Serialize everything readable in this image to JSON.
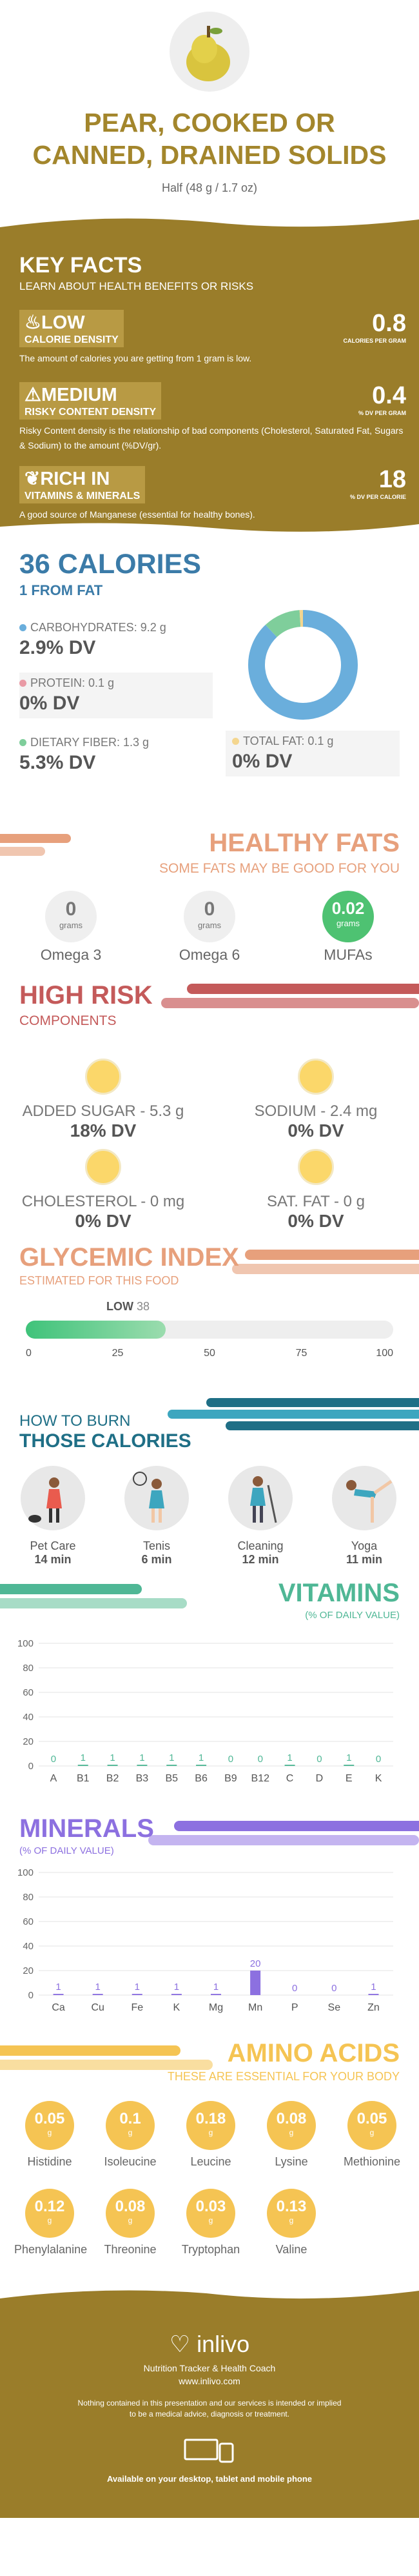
{
  "header": {
    "title_line1": "PEAR, COOKED OR",
    "title_line2": "CANNED, DRAINED SOLIDS",
    "serving": "Half (48 g / 1.7 oz)",
    "icon": "pear-icon"
  },
  "key_facts": {
    "title": "KEY FACTS",
    "subtitle": "LEARN ABOUT HEALTH BENEFITS OR RISKS",
    "facts": [
      {
        "level": "LOW",
        "name": "CALORIE DENSITY",
        "value": "0.8",
        "unit": "CALORIES PER GRAM",
        "desc": "The amount of calories you are getting from 1 gram is low.",
        "icon": "flame-icon"
      },
      {
        "level": "MEDIUM",
        "name": "RISKY CONTENT DENSITY",
        "value": "0.4",
        "unit": "% DV PER GRAM",
        "desc": "Risky Content density is the relationship of bad components (Cholesterol, Saturated Fat, Sugars & Sodium) to the amount (%DV/gr).",
        "icon": "warning-icon"
      },
      {
        "level": "RICH IN",
        "name": "VITAMINS & MINERALS",
        "value": "18",
        "unit": "% DV PER CALORIE",
        "desc": "A good source of Manganese (essential for healthy bones).",
        "icon": "leaf-icon"
      }
    ]
  },
  "calories": {
    "title": "36 CALORIES",
    "fat": "1 FROM FAT",
    "items": [
      {
        "label": "CARBOHYDRATES: 9.2 g",
        "dv": "2.9% DV",
        "color": "#6aaedc"
      },
      {
        "label": "PROTEIN: 0.1 g",
        "dv": "0% DV",
        "color": "#e99aa5"
      },
      {
        "label": "DIETARY FIBER: 1.3 g",
        "dv": "5.3% DV",
        "color": "#7fce9b"
      },
      {
        "label": "TOTAL FAT: 0.1 g",
        "dv": "0% DV",
        "color": "#f4d68f"
      }
    ],
    "donut": [
      {
        "name": "carbs",
        "value": 88,
        "color": "#6aaedc"
      },
      {
        "name": "fiber",
        "value": 11,
        "color": "#7fce9b"
      },
      {
        "name": "fat",
        "value": 1,
        "color": "#f4d68f"
      }
    ]
  },
  "healthy_fats": {
    "title": "HEALTHY FATS",
    "subtitle": "SOME FATS MAY BE GOOD FOR YOU",
    "unit": "grams",
    "items": [
      {
        "value": "0",
        "label": "Omega 3"
      },
      {
        "value": "0",
        "label": "Omega 6"
      },
      {
        "value": "0.02",
        "label": "MUFAs"
      }
    ]
  },
  "high_risk": {
    "title": "HIGH RISK",
    "subtitle": "COMPONENTS",
    "items": [
      {
        "label": "ADDED SUGAR - 5.3 g",
        "dv": "18% DV"
      },
      {
        "label": "SODIUM - 2.4 mg",
        "dv": "0% DV"
      },
      {
        "label": "CHOLESTEROL - 0 mg",
        "dv": "0% DV"
      },
      {
        "label": "SAT. FAT - 0 g",
        "dv": "0% DV"
      }
    ]
  },
  "glycemic": {
    "title": "GLYCEMIC INDEX",
    "subtitle": "ESTIMATED FOR THIS FOOD",
    "level": "LOW",
    "value": 38,
    "value_text": "38",
    "ticks": [
      "0",
      "25",
      "50",
      "75",
      "100"
    ]
  },
  "burn": {
    "title1": "HOW TO BURN",
    "title2": "THOSE CALORIES",
    "items": [
      {
        "label": "Pet Care",
        "time": "14 min",
        "icon": "dog-walking-icon"
      },
      {
        "label": "Tenis",
        "time": "6 min",
        "icon": "tennis-icon"
      },
      {
        "label": "Cleaning",
        "time": "12 min",
        "icon": "broom-icon"
      },
      {
        "label": "Yoga",
        "time": "11 min",
        "icon": "yoga-icon"
      }
    ]
  },
  "vitamins": {
    "title": "VITAMINS",
    "subtitle": "(% OF DAILY VALUE)",
    "chart_data": {
      "type": "bar",
      "categories": [
        "A",
        "B1",
        "B2",
        "B3",
        "B5",
        "B6",
        "B9",
        "B12",
        "C",
        "D",
        "E",
        "K"
      ],
      "values": [
        0,
        1,
        1,
        1,
        1,
        1,
        0,
        0,
        1,
        0,
        1,
        0
      ],
      "ylim": [
        0,
        100
      ],
      "yticks": [
        "100",
        "80",
        "60",
        "40",
        "20",
        "0"
      ],
      "color": "#4fb795"
    }
  },
  "minerals": {
    "title": "MINERALS",
    "subtitle": "(% OF DAILY VALUE)",
    "chart_data": {
      "type": "bar",
      "categories": [
        "Ca",
        "Cu",
        "Fe",
        "K",
        "Mg",
        "Mn",
        "P",
        "Se",
        "Zn"
      ],
      "values": [
        1,
        1,
        1,
        1,
        1,
        20,
        0,
        0,
        1
      ],
      "ylim": [
        0,
        100
      ],
      "yticks": [
        "100",
        "80",
        "60",
        "40",
        "20",
        "0"
      ],
      "color": "#8c70e0"
    }
  },
  "amino": {
    "title": "AMINO ACIDS",
    "subtitle": "THESE ARE ESSENTIAL FOR YOUR BODY",
    "unit": "g",
    "items": [
      {
        "value": "0.05",
        "label": "Histidine"
      },
      {
        "value": "0.1",
        "label": "Isoleucine"
      },
      {
        "value": "0.18",
        "label": "Leucine"
      },
      {
        "value": "0.08",
        "label": "Lysine"
      },
      {
        "value": "0.05",
        "label": "Methionine"
      },
      {
        "value": "0.12",
        "label": "Phenylalanine"
      },
      {
        "value": "0.08",
        "label": "Threonine"
      },
      {
        "value": "0.03",
        "label": "Tryptophan"
      },
      {
        "value": "0.13",
        "label": "Valine"
      }
    ]
  },
  "footer": {
    "brand": "inlivo",
    "tagline": "Nutrition Tracker & Health Coach",
    "url": "www.inlivo.com",
    "disclaimer1": "Nothing contained in this presentation and our services is intended or implied",
    "disclaimer2": "to be a medical advice, diagnosis or treatment.",
    "available": "Available on your desktop, tablet and mobile phone"
  }
}
